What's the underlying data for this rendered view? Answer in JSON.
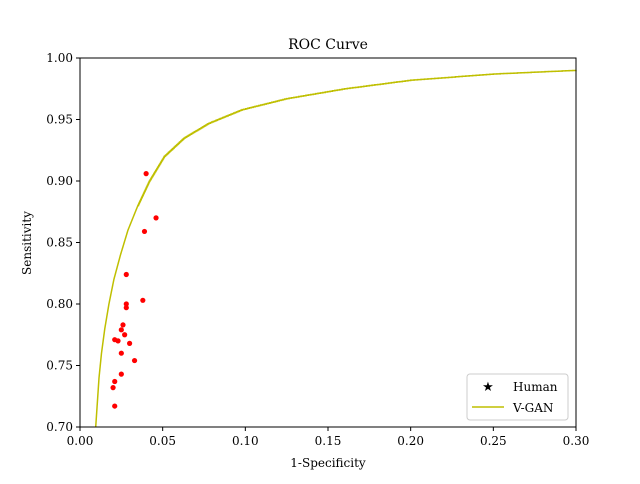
{
  "chart_data": {
    "type": "scatter",
    "title": "ROC Curve",
    "xlabel": "1-Specificity",
    "ylabel": "Sensitivity",
    "xlim": [
      0.0,
      0.3
    ],
    "ylim": [
      0.7,
      1.0
    ],
    "xticks": [
      "0.00",
      "0.05",
      "0.10",
      "0.15",
      "0.20",
      "0.25",
      "0.30"
    ],
    "yticks": [
      "0.70",
      "0.75",
      "0.80",
      "0.85",
      "0.90",
      "0.95",
      "1.00"
    ],
    "grid": false,
    "legend_position": "lower-right",
    "series": [
      {
        "name": "Human",
        "kind": "scatter",
        "marker": "dot",
        "legend_marker": "star",
        "color": "#ff0000",
        "points": [
          [
            0.04,
            0.906
          ],
          [
            0.046,
            0.87
          ],
          [
            0.039,
            0.859
          ],
          [
            0.028,
            0.824
          ],
          [
            0.038,
            0.803
          ],
          [
            0.028,
            0.8
          ],
          [
            0.028,
            0.797
          ],
          [
            0.026,
            0.783
          ],
          [
            0.025,
            0.779
          ],
          [
            0.021,
            0.771
          ],
          [
            0.023,
            0.77
          ],
          [
            0.03,
            0.768
          ],
          [
            0.025,
            0.76
          ],
          [
            0.033,
            0.754
          ],
          [
            0.025,
            0.743
          ],
          [
            0.021,
            0.737
          ],
          [
            0.02,
            0.732
          ],
          [
            0.021,
            0.717
          ],
          [
            0.027,
            0.775
          ]
        ]
      },
      {
        "name": "V-GAN",
        "kind": "step-line",
        "color": "#bfbf00",
        "points": [
          [
            0.0095,
            0.7
          ],
          [
            0.0105,
            0.72
          ],
          [
            0.0115,
            0.74
          ],
          [
            0.013,
            0.76
          ],
          [
            0.015,
            0.78
          ],
          [
            0.0175,
            0.8
          ],
          [
            0.0205,
            0.82
          ],
          [
            0.0245,
            0.84
          ],
          [
            0.029,
            0.86
          ],
          [
            0.035,
            0.88
          ],
          [
            0.042,
            0.9
          ],
          [
            0.051,
            0.92
          ],
          [
            0.063,
            0.935
          ],
          [
            0.078,
            0.947
          ],
          [
            0.098,
            0.958
          ],
          [
            0.125,
            0.967
          ],
          [
            0.16,
            0.975
          ],
          [
            0.2,
            0.982
          ],
          [
            0.25,
            0.987
          ],
          [
            0.3,
            0.99
          ]
        ]
      }
    ]
  }
}
